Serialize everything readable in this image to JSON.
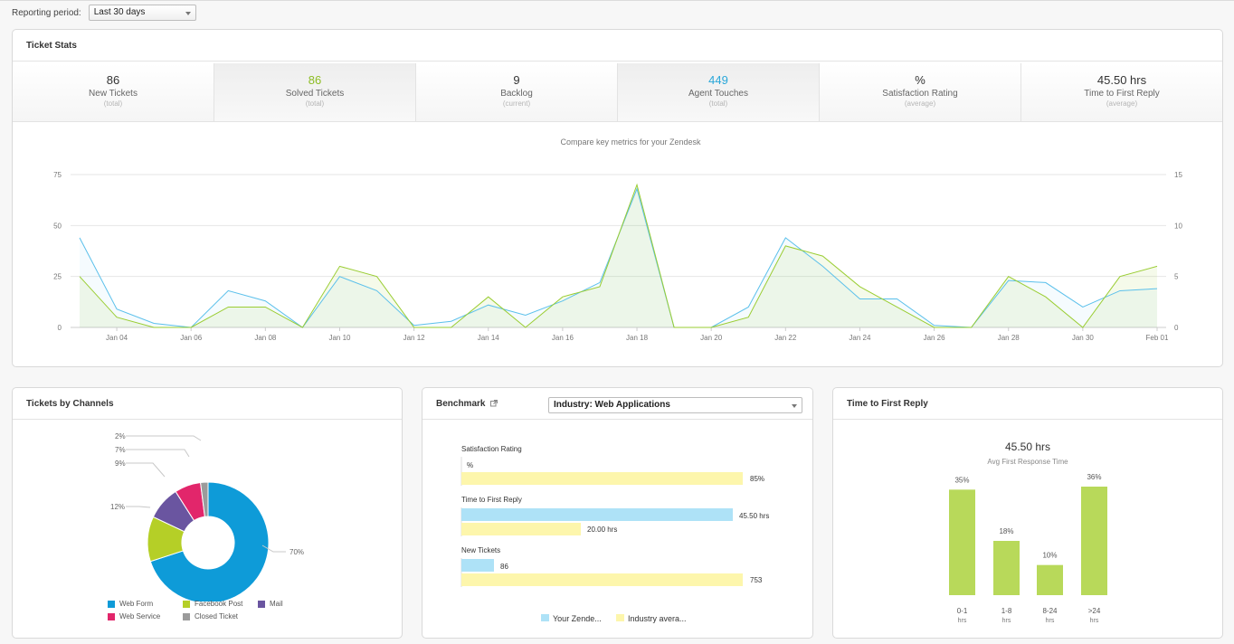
{
  "period": {
    "label": "Reporting period:",
    "value": "Last 30 days"
  },
  "ticket_stats": {
    "title": "Ticket Stats",
    "stats": [
      {
        "value": "86",
        "label": "New Tickets",
        "sub": "(total)",
        "color": "#333333"
      },
      {
        "value": "86",
        "label": "Solved Tickets",
        "sub": "(total)",
        "color": "#8dbd24"
      },
      {
        "value": "9",
        "label": "Backlog",
        "sub": "(current)",
        "color": "#333333"
      },
      {
        "value": "449",
        "label": "Agent Touches",
        "sub": "(total)",
        "color": "#29a7d9"
      },
      {
        "value": "%",
        "label": "Satisfaction Rating",
        "sub": "(average)",
        "color": "#333333"
      },
      {
        "value": "45.50 hrs",
        "label": "Time to First Reply",
        "sub": "(average)",
        "color": "#333333"
      }
    ],
    "chart_title": "Compare key metrics for your Zendesk"
  },
  "chart_data": [
    {
      "type": "line",
      "title": "Compare key metrics for your Zendesk",
      "x": [
        "Jan 03",
        "Jan 04",
        "Jan 05",
        "Jan 06",
        "Jan 07",
        "Jan 08",
        "Jan 09",
        "Jan 10",
        "Jan 11",
        "Jan 12",
        "Jan 13",
        "Jan 14",
        "Jan 15",
        "Jan 16",
        "Jan 17",
        "Jan 18",
        "Jan 19",
        "Jan 20",
        "Jan 21",
        "Jan 22",
        "Jan 23",
        "Jan 24",
        "Jan 25",
        "Jan 26",
        "Jan 27",
        "Jan 28",
        "Jan 29",
        "Jan 30",
        "Jan 31",
        "Feb 01"
      ],
      "xticks": [
        "Jan 04",
        "Jan 06",
        "Jan 08",
        "Jan 10",
        "Jan 12",
        "Jan 14",
        "Jan 16",
        "Jan 18",
        "Jan 20",
        "Jan 22",
        "Jan 24",
        "Jan 26",
        "Jan 28",
        "Jan 30",
        "Feb 01"
      ],
      "yticks_left": [
        0,
        25,
        50,
        75
      ],
      "yticks_right": [
        0,
        5,
        10,
        15
      ],
      "ylim_left": [
        0,
        75
      ],
      "ylim_right": [
        0,
        15
      ],
      "series": [
        {
          "axis": "left",
          "color": "#5bc0eb",
          "values": [
            44,
            9,
            2,
            0,
            18,
            13,
            0,
            25,
            18,
            1,
            3,
            11,
            6,
            13,
            22,
            68,
            0,
            0,
            10,
            44,
            30,
            14,
            14,
            1,
            0,
            23,
            22,
            10,
            18,
            19
          ]
        },
        {
          "axis": "right",
          "color": "#9acd32",
          "values": [
            5,
            1,
            0,
            0,
            2,
            2,
            0,
            6,
            5,
            0,
            0,
            3,
            0,
            3,
            4,
            14,
            0,
            0,
            1,
            8,
            7,
            4,
            2,
            0,
            0,
            5,
            3,
            0,
            5,
            6
          ]
        }
      ]
    },
    {
      "type": "pie",
      "title": "Tickets by Channels",
      "labels": [
        "Web Form",
        "Facebook Post",
        "Mail",
        "Web Service",
        "Closed Ticket"
      ],
      "values": [
        70,
        12,
        9,
        7,
        2
      ],
      "colors": [
        "#0e9bd8",
        "#b5cf27",
        "#6a55a0",
        "#e2266b",
        "#9b9b9b"
      ]
    },
    {
      "type": "bar",
      "title": "Time to First Reply",
      "categories": [
        "0-1 hrs",
        "1-8 hrs",
        "8-24 hrs",
        ">24 hrs"
      ],
      "values": [
        35,
        18,
        10,
        36
      ]
    }
  ],
  "channels": {
    "title": "Tickets by Channels",
    "pct_labels": [
      "2%",
      "7%",
      "9%",
      "12%",
      "70%"
    ],
    "legend": [
      {
        "name": "Web Form",
        "color": "#0e9bd8"
      },
      {
        "name": "Facebook Post",
        "color": "#b5cf27"
      },
      {
        "name": "Mail",
        "color": "#6a55a0"
      },
      {
        "name": "Web Service",
        "color": "#e2266b"
      },
      {
        "name": "Closed Ticket",
        "color": "#9b9b9b"
      }
    ]
  },
  "benchmark": {
    "title": "Benchmark",
    "industry": "Industry: Web Applications",
    "rows": [
      {
        "label": "Satisfaction Rating",
        "yours_text": "%",
        "industry_text": "85%"
      },
      {
        "label": "Time to First Reply",
        "yours_text": "45.50 hrs",
        "industry_text": "20.00 hrs"
      },
      {
        "label": "New Tickets",
        "yours_text": "86",
        "industry_text": "753"
      }
    ],
    "legend_yours": "Your Zende...",
    "legend_industry": "Industry avera...",
    "yours_color": "#aee2f7",
    "industry_color": "#fdf6ac"
  },
  "first_reply": {
    "title": "Time to First Reply",
    "big_value": "45.50 hrs",
    "subtitle": "Avg First Response Time",
    "bar_color": "#b8d95a",
    "bars": [
      {
        "pct": "35%",
        "line1": "0-1",
        "line2": "hrs",
        "value": 35
      },
      {
        "pct": "18%",
        "line1": "1-8",
        "line2": "hrs",
        "value": 18
      },
      {
        "pct": "10%",
        "line1": "8-24",
        "line2": "hrs",
        "value": 10
      },
      {
        "pct": "36%",
        "line1": ">24",
        "line2": "hrs",
        "value": 36
      }
    ]
  }
}
